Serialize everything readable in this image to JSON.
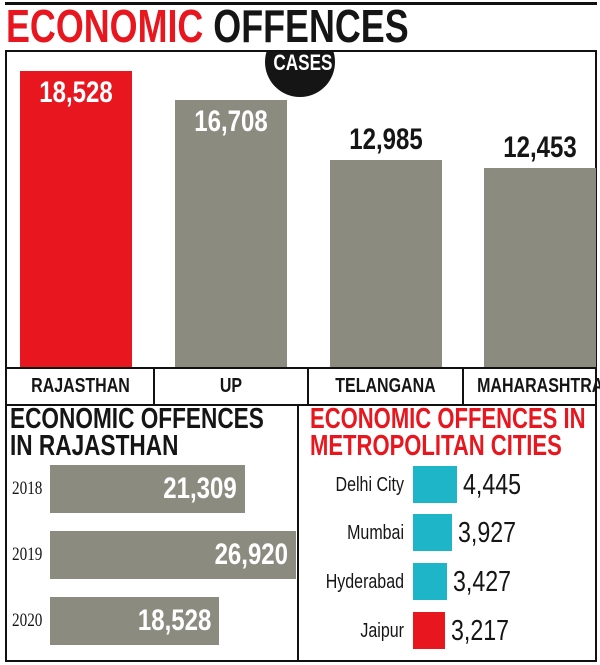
{
  "title": {
    "part1": "ECONOMIC",
    "part2": "OFFENCES",
    "badge": "CASES"
  },
  "colors": {
    "red": "#e8171f",
    "gray": "#8c8b80",
    "cyan": "#1fb5c9",
    "black": "#151515"
  },
  "chart_data": [
    {
      "type": "bar",
      "title": "ECONOMIC OFFENCES",
      "subtitle": "CASES",
      "categories": [
        "RAJASTHAN",
        "UP",
        "TELANGANA",
        "MAHARASHTRA"
      ],
      "values": [
        18528,
        16708,
        12985,
        12453
      ],
      "labels": [
        "18,528",
        "16,708",
        "12,985",
        "12,453"
      ],
      "highlight": "RAJASTHAN"
    },
    {
      "type": "bar",
      "orientation": "horizontal",
      "title": "ECONOMIC OFFENCES IN RAJASTHAN",
      "categories": [
        "2018",
        "2019",
        "2020"
      ],
      "values": [
        21309,
        26920,
        18528
      ],
      "labels": [
        "21,309",
        "26,920",
        "18,528"
      ]
    },
    {
      "type": "bar",
      "orientation": "horizontal",
      "title": "ECONOMIC OFFENCES IN METROPOLITAN CITIES",
      "categories": [
        "Delhi City",
        "Mumbai",
        "Hyderabad",
        "Jaipur"
      ],
      "values": [
        4445,
        3927,
        3427,
        3217
      ],
      "labels": [
        "4,445",
        "3,927",
        "3,427",
        "3,217"
      ],
      "highlight": "Jaipur"
    }
  ]
}
